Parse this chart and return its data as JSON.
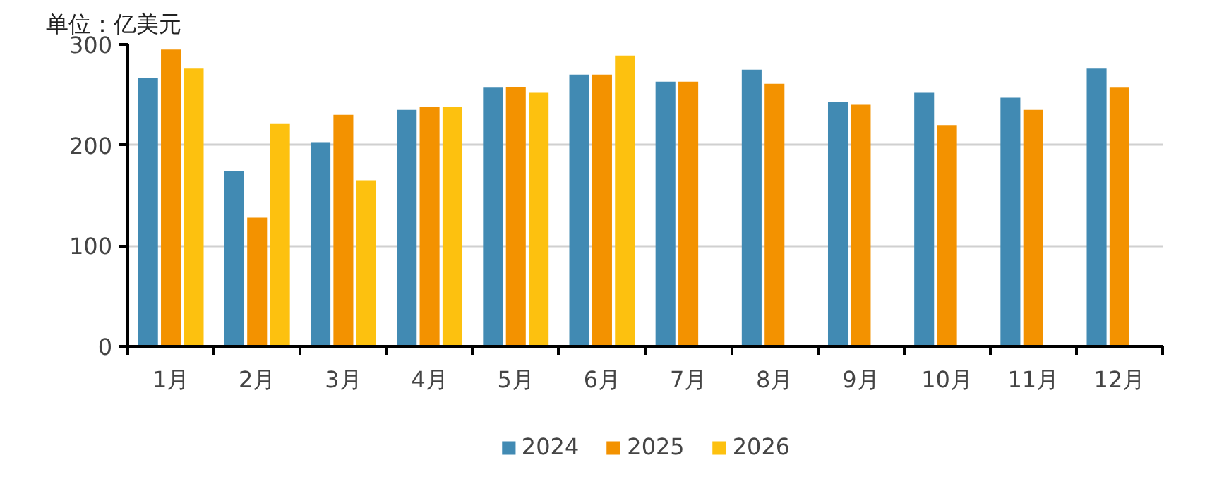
{
  "chart_data": {
    "type": "bar",
    "ylabel": "单位：亿美元",
    "categories": [
      "1月",
      "2月",
      "3月",
      "4月",
      "5月",
      "6月",
      "7月",
      "8月",
      "9月",
      "10月",
      "11月",
      "12月"
    ],
    "series": [
      {
        "name": "2024",
        "color": "#418ab3",
        "values": [
          267,
          174,
          203,
          235,
          257,
          270,
          263,
          275,
          243,
          252,
          247,
          276
        ]
      },
      {
        "name": "2025",
        "color": "#f39200",
        "values": [
          295,
          128,
          230,
          238,
          258,
          270,
          263,
          261,
          240,
          220,
          235,
          257
        ]
      },
      {
        "name": "2026",
        "color": "#fdc10f",
        "values": [
          276,
          221,
          165,
          238,
          252,
          289,
          null,
          null,
          null,
          null,
          null,
          null
        ]
      }
    ],
    "ylim": [
      0,
      300
    ],
    "yticks": [
      0,
      100,
      200,
      300
    ],
    "grid": "y",
    "legend": "bottom"
  }
}
